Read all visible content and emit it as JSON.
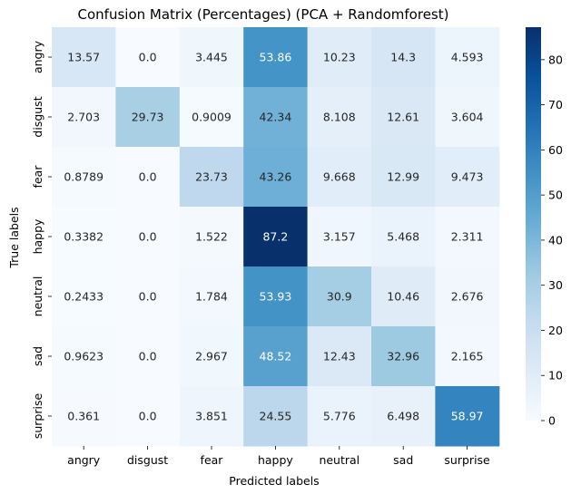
{
  "chart_data": {
    "type": "heatmap",
    "title": "Confusion Matrix (Percentages) (PCA + Randomforest)",
    "xlabel": "Predicted labels",
    "ylabel": "True labels",
    "x_categories": [
      "angry",
      "disgust",
      "fear",
      "happy",
      "neutral",
      "sad",
      "surprise"
    ],
    "y_categories": [
      "angry",
      "disgust",
      "fear",
      "happy",
      "neutral",
      "sad",
      "surprise"
    ],
    "values": [
      [
        13.57,
        0.0,
        3.445,
        53.86,
        10.23,
        14.3,
        4.593
      ],
      [
        2.703,
        29.73,
        0.9009,
        42.34,
        8.108,
        12.61,
        3.604
      ],
      [
        0.8789,
        0.0,
        23.73,
        43.26,
        9.668,
        12.99,
        9.473
      ],
      [
        0.3382,
        0.0,
        1.522,
        87.2,
        3.157,
        5.468,
        2.311
      ],
      [
        0.2433,
        0.0,
        1.784,
        53.93,
        30.9,
        10.46,
        2.676
      ],
      [
        0.9623,
        0.0,
        2.967,
        48.52,
        12.43,
        32.96,
        2.165
      ],
      [
        0.361,
        0.0,
        3.851,
        24.55,
        5.776,
        6.498,
        58.97
      ]
    ],
    "cell_labels": [
      [
        "13.57",
        "0.0",
        "3.445",
        "53.86",
        "10.23",
        "14.3",
        "4.593"
      ],
      [
        "2.703",
        "29.73",
        "0.9009",
        "42.34",
        "8.108",
        "12.61",
        "3.604"
      ],
      [
        "0.8789",
        "0.0",
        "23.73",
        "43.26",
        "9.668",
        "12.99",
        "9.473"
      ],
      [
        "0.3382",
        "0.0",
        "1.522",
        "87.2",
        "3.157",
        "5.468",
        "2.311"
      ],
      [
        "0.2433",
        "0.0",
        "1.784",
        "53.93",
        "30.9",
        "10.46",
        "2.676"
      ],
      [
        "0.9623",
        "0.0",
        "2.967",
        "48.52",
        "12.43",
        "32.96",
        "2.165"
      ],
      [
        "0.361",
        "0.0",
        "3.851",
        "24.55",
        "5.776",
        "6.498",
        "58.97"
      ]
    ],
    "colorbar": {
      "range": [
        0,
        87.2
      ],
      "ticks": [
        0,
        10,
        20,
        30,
        40,
        50,
        60,
        70,
        80
      ],
      "colormap": "Blues",
      "color_low": "#f7fbff",
      "color_high": "#08306b"
    },
    "annotation_text_color_light": "#ffffff",
    "annotation_text_color_dark": "#262626"
  }
}
